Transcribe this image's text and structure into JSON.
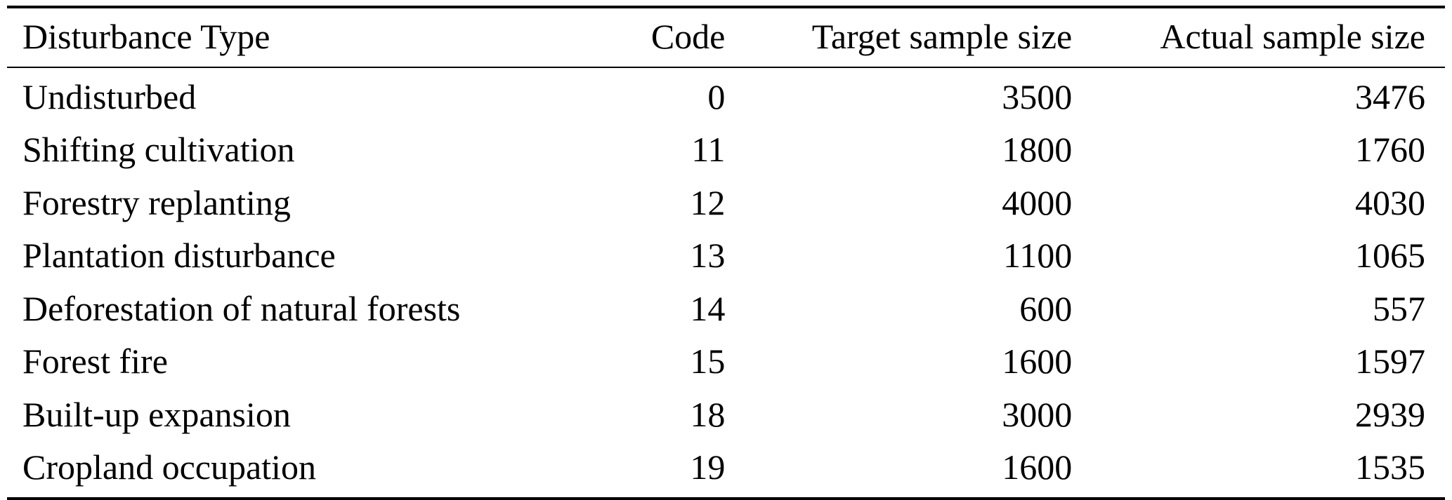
{
  "table": {
    "headers": [
      "Disturbance Type",
      "Code",
      "Target sample size",
      "Actual sample size"
    ],
    "rows": [
      [
        "Undisturbed",
        "0",
        "3500",
        "3476"
      ],
      [
        "Shifting cultivation",
        "11",
        "1800",
        "1760"
      ],
      [
        "Forestry replanting",
        "12",
        "4000",
        "4030"
      ],
      [
        "Plantation disturbance",
        "13",
        "1100",
        "1065"
      ],
      [
        "Deforestation of natural forests",
        "14",
        "600",
        "557"
      ],
      [
        "Forest fire",
        "15",
        "1600",
        "1597"
      ],
      [
        "Built-up expansion",
        "18",
        "3000",
        "2939"
      ],
      [
        "Cropland occupation",
        "19",
        "1600",
        "1535"
      ]
    ]
  }
}
